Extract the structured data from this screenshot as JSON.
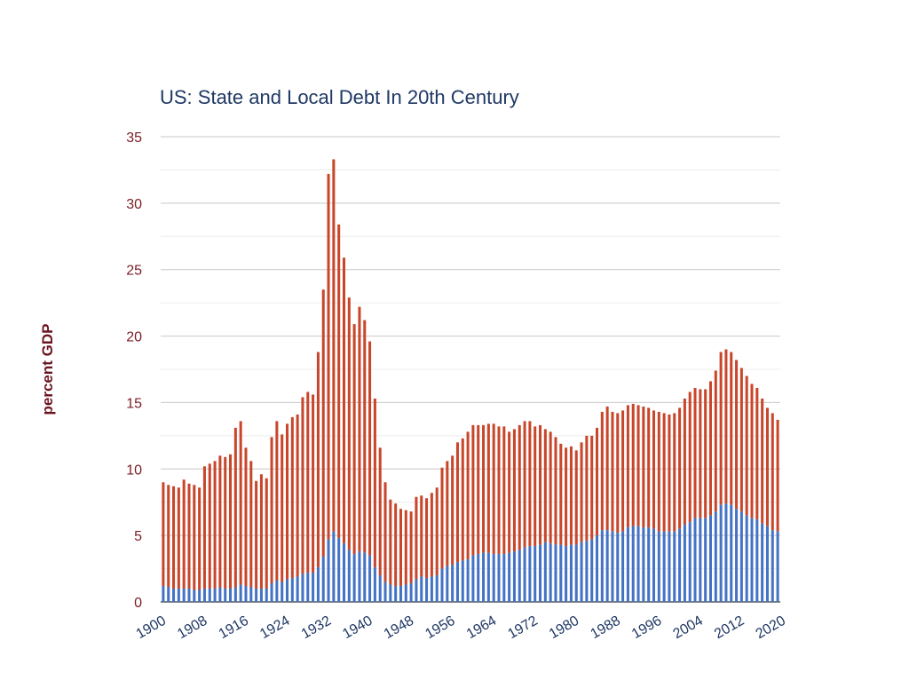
{
  "chart_data": {
    "type": "bar",
    "stacked": true,
    "title": "US: State and Local Debt In 20th Century",
    "xlabel": "",
    "ylabel": "percent GDP",
    "ylim": [
      0,
      35
    ],
    "yticks": [
      0,
      5,
      10,
      15,
      20,
      25,
      30,
      35
    ],
    "xtick_labels": [
      "1900",
      "1908",
      "1916",
      "1924",
      "1932",
      "1940",
      "1948",
      "1956",
      "1964",
      "1972",
      "1980",
      "1988",
      "1996",
      "2004",
      "2012",
      "2020"
    ],
    "grid": true,
    "legend": "none",
    "x_start": 1900,
    "x_end": 2020,
    "totals": [
      9.0,
      8.8,
      8.7,
      8.6,
      9.2,
      8.9,
      8.8,
      8.6,
      10.2,
      10.4,
      10.6,
      11.0,
      10.9,
      11.1,
      13.1,
      13.6,
      11.6,
      10.6,
      9.1,
      9.6,
      9.3,
      12.4,
      13.6,
      12.6,
      13.4,
      13.9,
      14.1,
      15.4,
      15.8,
      15.6,
      18.8,
      23.5,
      32.2,
      33.3,
      28.4,
      25.9,
      22.9,
      20.9,
      22.2,
      21.2,
      19.6,
      15.3,
      11.6,
      9.0,
      7.7,
      7.4,
      7.0,
      6.9,
      6.8,
      7.9,
      8.0,
      7.8,
      8.2,
      8.6,
      10.1,
      10.6,
      11.0,
      12.0,
      12.3,
      12.8,
      13.3,
      13.3,
      13.3,
      13.4,
      13.4,
      13.2,
      13.2,
      12.8,
      13.0,
      13.3,
      13.6,
      13.6,
      13.2,
      13.3,
      13.0,
      12.8,
      12.4,
      11.9,
      11.6,
      11.7,
      11.4,
      12.0,
      12.5,
      12.5,
      13.1,
      14.3,
      14.7,
      14.3,
      14.2,
      14.4,
      14.8,
      14.9,
      14.8,
      14.7,
      14.6,
      14.4,
      14.3,
      14.2,
      14.1,
      14.2,
      14.6,
      15.3,
      15.8,
      16.1,
      16.0,
      16.0,
      16.6,
      17.4,
      18.8,
      19.0,
      18.8,
      18.2,
      17.6,
      17.0,
      16.4,
      16.1,
      15.3,
      14.6,
      14.2,
      13.7
    ],
    "series": [
      {
        "name": "",
        "color": "#4472c4",
        "values": [
          1.2,
          1.1,
          1.0,
          1.0,
          1.0,
          1.0,
          0.9,
          0.9,
          1.0,
          1.0,
          1.0,
          1.1,
          1.0,
          1.0,
          1.1,
          1.3,
          1.2,
          1.1,
          1.0,
          1.0,
          1.0,
          1.4,
          1.6,
          1.5,
          1.7,
          1.8,
          1.9,
          2.1,
          2.2,
          2.2,
          2.6,
          3.4,
          4.7,
          5.3,
          4.8,
          4.4,
          3.9,
          3.6,
          3.8,
          3.7,
          3.5,
          2.6,
          2.0,
          1.5,
          1.3,
          1.2,
          1.2,
          1.3,
          1.4,
          1.7,
          1.9,
          1.8,
          1.9,
          2.0,
          2.5,
          2.7,
          2.8,
          3.0,
          3.1,
          3.2,
          3.5,
          3.6,
          3.7,
          3.7,
          3.6,
          3.6,
          3.6,
          3.7,
          3.8,
          3.9,
          4.1,
          4.2,
          4.2,
          4.3,
          4.5,
          4.4,
          4.3,
          4.3,
          4.2,
          4.3,
          4.3,
          4.5,
          4.6,
          4.7,
          5.0,
          5.4,
          5.4,
          5.3,
          5.2,
          5.3,
          5.6,
          5.7,
          5.7,
          5.6,
          5.6,
          5.5,
          5.3,
          5.3,
          5.3,
          5.3,
          5.5,
          5.8,
          6.0,
          6.3,
          6.3,
          6.3,
          6.5,
          6.8,
          7.3,
          7.4,
          7.3,
          7.0,
          6.8,
          6.5,
          6.3,
          6.2,
          5.9,
          5.7,
          5.4,
          5.3
        ]
      },
      {
        "name": "",
        "color": "#c8462b",
        "values": "remainder of totals"
      }
    ]
  }
}
